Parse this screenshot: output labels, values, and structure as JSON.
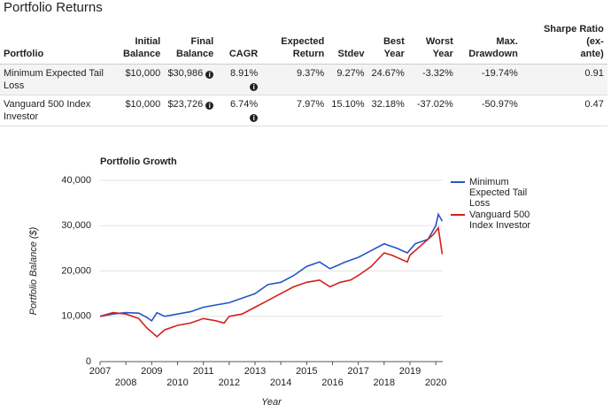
{
  "header": {
    "title": "Portfolio Returns"
  },
  "table": {
    "columns": [
      [
        "Portfolio"
      ],
      [
        "Initial",
        "Balance"
      ],
      [
        "Final",
        "Balance"
      ],
      [
        "CAGR"
      ],
      [
        "Expected",
        "Return"
      ],
      [
        "Stdev"
      ],
      [
        "Best",
        "Year"
      ],
      [
        "Worst",
        "Year"
      ],
      [
        "Max.",
        "Drawdown"
      ],
      [
        "Sharpe Ratio (ex-",
        "ante)"
      ]
    ],
    "rows": [
      [
        "Minimum Expected Tail Loss",
        "$10,000",
        "$30,986",
        "8.91%",
        "9.37%",
        "9.27%",
        "24.67%",
        "-3.32%",
        "-19.74%",
        "0.91"
      ],
      [
        "Vanguard 500 Index Investor",
        "$10,000",
        "$23,726",
        "6.74%",
        "7.97%",
        "15.10%",
        "32.18%",
        "-37.02%",
        "-50.97%",
        "0.47"
      ]
    ]
  },
  "chart_data": {
    "type": "line",
    "title": "Portfolio Growth",
    "x_label": "Year",
    "y_label": "Portfolio Balance ($)",
    "xlim": [
      2007,
      2020.27
    ],
    "xticks": [
      2007,
      2008,
      2009,
      2010,
      2011,
      2012,
      2013,
      2014,
      2015,
      2016,
      2017,
      2018,
      2019,
      2020
    ],
    "ylim": [
      0,
      40000
    ],
    "yticks": [
      0,
      {
        "value": 10000,
        "label": "10,000"
      },
      {
        "value": 20000,
        "label": "20,000"
      },
      {
        "value": 30000,
        "label": "30,000"
      },
      {
        "value": 40000,
        "label": "40,000"
      }
    ],
    "grid": true,
    "series": [
      {
        "name": "Minimum Expected Tail Loss",
        "color": "#2356c6",
        "x": [
          2007.0,
          2007.5,
          2008.0,
          2008.5,
          2008.8,
          2009.0,
          2009.2,
          2009.5,
          2010.0,
          2010.5,
          2011.0,
          2011.5,
          2012.0,
          2012.5,
          2013.0,
          2013.5,
          2014.0,
          2014.5,
          2015.0,
          2015.5,
          2015.9,
          2016.5,
          2017.0,
          2017.5,
          2018.0,
          2018.5,
          2018.9,
          2019.2,
          2019.7,
          2020.0,
          2020.1,
          2020.25
        ],
        "values": [
          10000,
          10500,
          10800,
          10700,
          9800,
          9000,
          10800,
          10000,
          10500,
          11000,
          12000,
          12500,
          13000,
          14000,
          15000,
          17000,
          17500,
          19000,
          21000,
          22000,
          20500,
          22000,
          23000,
          24500,
          26000,
          25000,
          24000,
          26000,
          27000,
          30000,
          32500,
          31000
        ]
      },
      {
        "name": "Vanguard 500 Index Investor",
        "color": "#d21f1a",
        "x": [
          2007.0,
          2007.5,
          2008.0,
          2008.5,
          2008.8,
          2009.2,
          2009.5,
          2010.0,
          2010.5,
          2011.0,
          2011.5,
          2011.8,
          2012.0,
          2012.5,
          2013.0,
          2013.5,
          2014.0,
          2014.5,
          2015.0,
          2015.5,
          2015.9,
          2016.3,
          2016.7,
          2017.0,
          2017.5,
          2018.0,
          2018.3,
          2018.9,
          2019.0,
          2019.5,
          2019.9,
          2020.1,
          2020.25
        ],
        "values": [
          10000,
          10800,
          10500,
          9500,
          7500,
          5500,
          7000,
          8000,
          8500,
          9500,
          9000,
          8500,
          10000,
          10500,
          12000,
          13500,
          15000,
          16500,
          17500,
          18000,
          16500,
          17500,
          18000,
          19000,
          21000,
          24000,
          23500,
          22000,
          23500,
          26000,
          28000,
          29500,
          23700
        ]
      }
    ]
  }
}
